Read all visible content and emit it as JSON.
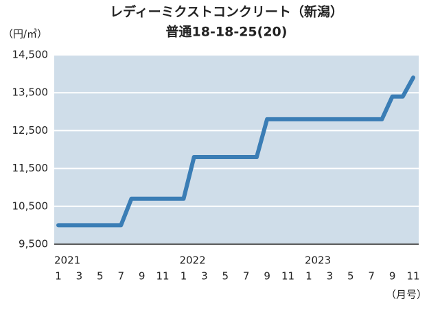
{
  "chart_data": {
    "type": "line",
    "title": "レディーミクストコンクリート（新潟）",
    "subtitle": "普通18-18-25(20)",
    "y_unit": "（円/㎥）",
    "x_unit": "（月号）",
    "categories": [
      "1",
      null,
      "3",
      null,
      "5",
      null,
      "7",
      null,
      "9",
      null,
      "11",
      null,
      "1",
      null,
      "3",
      null,
      "5",
      null,
      "7",
      null,
      "9",
      null,
      "11",
      null,
      "1",
      null,
      "3",
      null,
      "5",
      null,
      "7",
      null,
      "9",
      null,
      "11"
    ],
    "years": [
      "2021",
      null,
      null,
      null,
      null,
      null,
      null,
      null,
      null,
      null,
      null,
      null,
      "2022",
      null,
      null,
      null,
      null,
      null,
      null,
      null,
      null,
      null,
      null,
      null,
      "2023",
      null,
      null,
      null,
      null,
      null,
      null,
      null,
      null,
      null,
      null
    ],
    "series": [
      {
        "color": "#3a7db5",
        "values": [
          10000,
          10000,
          10000,
          10000,
          10000,
          10000,
          10000,
          10700,
          10700,
          10700,
          10700,
          10700,
          10700,
          11800,
          11800,
          11800,
          11800,
          11800,
          11800,
          11800,
          12800,
          12800,
          12800,
          12800,
          12800,
          12800,
          12800,
          12800,
          12800,
          12800,
          12800,
          12800,
          13400,
          13400,
          13900
        ]
      }
    ],
    "ylim": [
      9500,
      14500
    ],
    "yticks": [
      {
        "value": 9500,
        "label": "9,500"
      },
      {
        "value": 10500,
        "label": "10,500"
      },
      {
        "value": 11500,
        "label": "11,500"
      },
      {
        "value": 12500,
        "label": "12,500"
      },
      {
        "value": 13500,
        "label": "13,500"
      },
      {
        "value": 14500,
        "label": "14,500"
      }
    ],
    "grid": true,
    "background": "#cfdde9"
  }
}
